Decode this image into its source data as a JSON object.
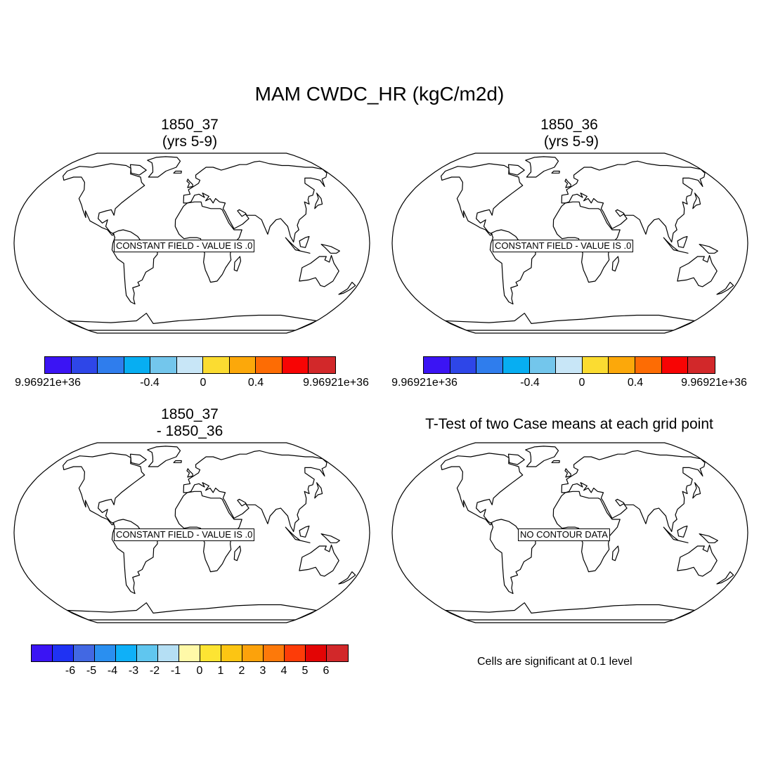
{
  "figure": {
    "title": "MAM CWDC_HR (kgC/m2d)"
  },
  "panels": [
    {
      "title_line1": "1850_37",
      "title_line2": "(yrs 5-9)",
      "message": "CONSTANT FIELD - VALUE IS .0"
    },
    {
      "title_line1": "1850_36",
      "title_line2": " (yrs 5-9)",
      "message": "CONSTANT FIELD - VALUE IS .0"
    },
    {
      "title_line1": "1850_37",
      "title_line2": "- 1850_36",
      "message": "CONSTANT FIELD - VALUE IS .0"
    },
    {
      "title_line1": "T-Test of two Case means at each grid point",
      "title_line2": "",
      "message": "NO CONTOUR DATA"
    }
  ],
  "colorbar_top": {
    "colors": [
      "#3b14f4",
      "#2e46e8",
      "#2f7ded",
      "#07aef2",
      "#73c6ec",
      "#c8e6f7",
      "#fbdc31",
      "#fca80a",
      "#fd6c04",
      "#f80404",
      "#d2282a"
    ],
    "labels": [
      "9.96921e+36",
      "-0.4",
      "0",
      "0.4",
      "9.96921e+36"
    ]
  },
  "colorbar_bottom": {
    "colors": [
      "#3b14f4",
      "#1f32f3",
      "#4268e3",
      "#2a8ff0",
      "#0fb0f8",
      "#60c6ef",
      "#b5dff4",
      "#fff9a8",
      "#fde433",
      "#fcc513",
      "#fca20b",
      "#fd790a",
      "#fd3c08",
      "#e30505",
      "#d2282a"
    ],
    "labels": [
      "-6",
      "-5",
      "-4",
      "-3",
      "-2",
      "-1",
      "0",
      "1",
      "2",
      "3",
      "4",
      "5",
      "6"
    ]
  },
  "note": "Cells are significant at 0.1 level"
}
